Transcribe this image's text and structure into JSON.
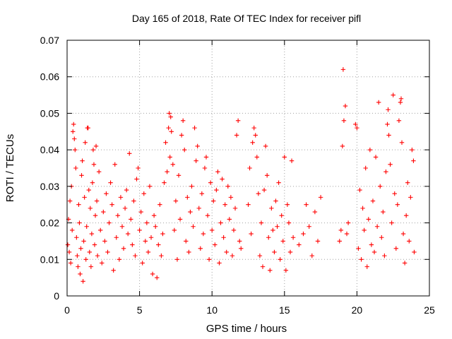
{
  "chart_data": {
    "type": "scatter",
    "title": "Day 165 of 2018, Rate Of TEC Index for receiver pifl",
    "xlabel": "GPS time / hours",
    "ylabel": "ROTI / TECUs",
    "xlim": [
      0,
      25
    ],
    "ylim": [
      0,
      0.07
    ],
    "xticks": [
      0,
      5,
      10,
      15,
      20,
      25
    ],
    "xtick_labels": [
      "0",
      "5",
      "10",
      "15",
      "20",
      "25"
    ],
    "yticks": [
      0,
      0.01,
      0.02,
      0.03,
      0.04,
      0.05,
      0.06,
      0.07
    ],
    "ytick_labels": [
      "0",
      "0.01",
      "0.02",
      "0.03",
      "0.04",
      "0.05",
      "0.06",
      "0.07"
    ],
    "grid": true,
    "marker": "+",
    "color": "#ff0000",
    "series": [
      {
        "name": "ROTI",
        "points": [
          [
            0.05,
            0.014
          ],
          [
            0.1,
            0.021
          ],
          [
            0.15,
            0.012
          ],
          [
            0.2,
            0.026
          ],
          [
            0.25,
            0.009
          ],
          [
            0.3,
            0.03
          ],
          [
            0.35,
            0.018
          ],
          [
            0.4,
            0.045
          ],
          [
            0.45,
            0.047
          ],
          [
            0.5,
            0.043
          ],
          [
            0.55,
            0.04
          ],
          [
            0.6,
            0.035
          ],
          [
            0.65,
            0.016
          ],
          [
            0.7,
            0.011
          ],
          [
            0.75,
            0.008
          ],
          [
            0.8,
            0.025
          ],
          [
            0.85,
            0.02
          ],
          [
            0.9,
            0.006
          ],
          [
            0.95,
            0.013
          ],
          [
            1.0,
            0.033
          ],
          [
            1.05,
            0.037
          ],
          [
            1.1,
            0.004
          ],
          [
            1.15,
            0.015
          ],
          [
            1.2,
            0.027
          ],
          [
            1.25,
            0.042
          ],
          [
            1.3,
            0.01
          ],
          [
            1.35,
            0.019
          ],
          [
            1.4,
            0.046
          ],
          [
            1.45,
            0.046
          ],
          [
            1.5,
            0.029
          ],
          [
            1.55,
            0.012
          ],
          [
            1.6,
            0.024
          ],
          [
            1.65,
            0.008
          ],
          [
            1.7,
            0.017
          ],
          [
            1.75,
            0.031
          ],
          [
            1.8,
            0.04
          ],
          [
            1.85,
            0.036
          ],
          [
            1.9,
            0.014
          ],
          [
            1.95,
            0.022
          ],
          [
            2.0,
            0.041
          ],
          [
            2.05,
            0.026
          ],
          [
            2.1,
            0.011
          ],
          [
            2.2,
            0.034
          ],
          [
            2.3,
            0.018
          ],
          [
            2.4,
            0.009
          ],
          [
            2.5,
            0.023
          ],
          [
            2.6,
            0.015
          ],
          [
            2.7,
            0.028
          ],
          [
            2.8,
            0.012
          ],
          [
            2.9,
            0.02
          ],
          [
            3.0,
            0.031
          ],
          [
            3.1,
            0.025
          ],
          [
            3.2,
            0.007
          ],
          [
            3.3,
            0.036
          ],
          [
            3.4,
            0.016
          ],
          [
            3.5,
            0.022
          ],
          [
            3.6,
            0.01
          ],
          [
            3.7,
            0.027
          ],
          [
            3.8,
            0.019
          ],
          [
            3.9,
            0.013
          ],
          [
            4.0,
            0.024
          ],
          [
            4.1,
            0.029
          ],
          [
            4.2,
            0.017
          ],
          [
            4.3,
            0.039
          ],
          [
            4.4,
            0.021
          ],
          [
            4.5,
            0.014
          ],
          [
            4.6,
            0.026
          ],
          [
            4.7,
            0.011
          ],
          [
            4.8,
            0.032
          ],
          [
            4.9,
            0.035
          ],
          [
            5.0,
            0.018
          ],
          [
            5.1,
            0.023
          ],
          [
            5.2,
            0.009
          ],
          [
            5.3,
            0.028
          ],
          [
            5.4,
            0.015
          ],
          [
            5.5,
            0.02
          ],
          [
            5.6,
            0.012
          ],
          [
            5.7,
            0.03
          ],
          [
            5.8,
            0.016
          ],
          [
            5.9,
            0.006
          ],
          [
            6.0,
            0.022
          ],
          [
            6.1,
            0.019
          ],
          [
            6.2,
            0.005
          ],
          [
            6.3,
            0.014
          ],
          [
            6.4,
            0.025
          ],
          [
            6.5,
            0.011
          ],
          [
            6.6,
            0.017
          ],
          [
            6.7,
            0.031
          ],
          [
            6.8,
            0.042
          ],
          [
            6.9,
            0.034
          ],
          [
            7.0,
            0.046
          ],
          [
            7.05,
            0.05
          ],
          [
            7.1,
            0.038
          ],
          [
            7.15,
            0.049
          ],
          [
            7.2,
            0.045
          ],
          [
            7.3,
            0.036
          ],
          [
            7.4,
            0.018
          ],
          [
            7.5,
            0.026
          ],
          [
            7.6,
            0.01
          ],
          [
            7.7,
            0.033
          ],
          [
            7.8,
            0.021
          ],
          [
            7.9,
            0.044
          ],
          [
            8.0,
            0.048
          ],
          [
            8.1,
            0.04
          ],
          [
            8.2,
            0.015
          ],
          [
            8.3,
            0.027
          ],
          [
            8.4,
            0.012
          ],
          [
            8.5,
            0.023
          ],
          [
            8.6,
            0.03
          ],
          [
            8.7,
            0.019
          ],
          [
            8.8,
            0.046
          ],
          [
            8.9,
            0.037
          ],
          [
            9.0,
            0.041
          ],
          [
            9.1,
            0.024
          ],
          [
            9.2,
            0.013
          ],
          [
            9.3,
            0.028
          ],
          [
            9.4,
            0.017
          ],
          [
            9.5,
            0.035
          ],
          [
            9.6,
            0.038
          ],
          [
            9.7,
            0.022
          ],
          [
            9.8,
            0.01
          ],
          [
            9.9,
            0.031
          ],
          [
            10.0,
            0.018
          ],
          [
            10.1,
            0.026
          ],
          [
            10.2,
            0.014
          ],
          [
            10.3,
            0.029
          ],
          [
            10.4,
            0.034
          ],
          [
            10.5,
            0.009
          ],
          [
            10.6,
            0.02
          ],
          [
            10.7,
            0.032
          ],
          [
            10.8,
            0.016
          ],
          [
            10.9,
            0.025
          ],
          [
            11.0,
            0.012
          ],
          [
            11.1,
            0.03
          ],
          [
            11.2,
            0.021
          ],
          [
            11.3,
            0.027
          ],
          [
            11.4,
            0.011
          ],
          [
            11.5,
            0.018
          ],
          [
            11.6,
            0.024
          ],
          [
            11.7,
            0.044
          ],
          [
            11.8,
            0.048
          ],
          [
            11.9,
            0.015
          ],
          [
            12.0,
            0.013
          ],
          [
            12.5,
            0.025
          ],
          [
            12.6,
            0.035
          ],
          [
            12.7,
            0.017
          ],
          [
            12.8,
            0.042
          ],
          [
            12.9,
            0.046
          ],
          [
            13.0,
            0.044
          ],
          [
            13.1,
            0.038
          ],
          [
            13.2,
            0.028
          ],
          [
            13.3,
            0.011
          ],
          [
            13.4,
            0.02
          ],
          [
            13.5,
            0.008
          ],
          [
            13.6,
            0.029
          ],
          [
            13.7,
            0.041
          ],
          [
            13.8,
            0.033
          ],
          [
            13.9,
            0.016
          ],
          [
            14.0,
            0.007
          ],
          [
            14.1,
            0.024
          ],
          [
            14.2,
            0.018
          ],
          [
            14.3,
            0.012
          ],
          [
            14.4,
            0.026
          ],
          [
            14.5,
            0.019
          ],
          [
            14.6,
            0.031
          ],
          [
            14.7,
            0.01
          ],
          [
            14.8,
            0.022
          ],
          [
            14.9,
            0.015
          ],
          [
            15.0,
            0.038
          ],
          [
            15.1,
            0.007
          ],
          [
            15.2,
            0.025
          ],
          [
            15.3,
            0.02
          ],
          [
            15.4,
            0.012
          ],
          [
            15.5,
            0.037
          ],
          [
            15.6,
            0.016
          ],
          [
            16.0,
            0.014
          ],
          [
            16.3,
            0.017
          ],
          [
            16.5,
            0.025
          ],
          [
            16.7,
            0.019
          ],
          [
            16.9,
            0.011
          ],
          [
            17.1,
            0.023
          ],
          [
            17.3,
            0.015
          ],
          [
            17.5,
            0.027
          ],
          [
            18.8,
            0.015
          ],
          [
            18.9,
            0.018
          ],
          [
            19.0,
            0.041
          ],
          [
            19.05,
            0.062
          ],
          [
            19.1,
            0.048
          ],
          [
            19.2,
            0.052
          ],
          [
            19.3,
            0.017
          ],
          [
            19.4,
            0.02
          ],
          [
            19.9,
            0.047
          ],
          [
            20.0,
            0.046
          ],
          [
            20.1,
            0.013
          ],
          [
            20.2,
            0.029
          ],
          [
            20.3,
            0.01
          ],
          [
            20.4,
            0.024
          ],
          [
            20.5,
            0.018
          ],
          [
            20.6,
            0.035
          ],
          [
            20.7,
            0.008
          ],
          [
            20.8,
            0.021
          ],
          [
            20.9,
            0.04
          ],
          [
            21.0,
            0.014
          ],
          [
            21.1,
            0.026
          ],
          [
            21.2,
            0.012
          ],
          [
            21.3,
            0.038
          ],
          [
            21.4,
            0.019
          ],
          [
            21.5,
            0.053
          ],
          [
            21.6,
            0.03
          ],
          [
            21.7,
            0.016
          ],
          [
            21.8,
            0.023
          ],
          [
            21.9,
            0.011
          ],
          [
            22.0,
            0.034
          ],
          [
            22.1,
            0.047
          ],
          [
            22.15,
            0.051
          ],
          [
            22.2,
            0.044
          ],
          [
            22.3,
            0.036
          ],
          [
            22.4,
            0.02
          ],
          [
            22.5,
            0.055
          ],
          [
            22.6,
            0.028
          ],
          [
            22.7,
            0.013
          ],
          [
            22.8,
            0.025
          ],
          [
            22.9,
            0.048
          ],
          [
            23.0,
            0.053
          ],
          [
            23.05,
            0.054
          ],
          [
            23.1,
            0.042
          ],
          [
            23.2,
            0.017
          ],
          [
            23.3,
            0.009
          ],
          [
            23.4,
            0.022
          ],
          [
            23.5,
            0.031
          ],
          [
            23.6,
            0.015
          ],
          [
            23.7,
            0.027
          ],
          [
            23.8,
            0.04
          ],
          [
            23.9,
            0.037
          ],
          [
            23.95,
            0.012
          ]
        ]
      }
    ]
  }
}
